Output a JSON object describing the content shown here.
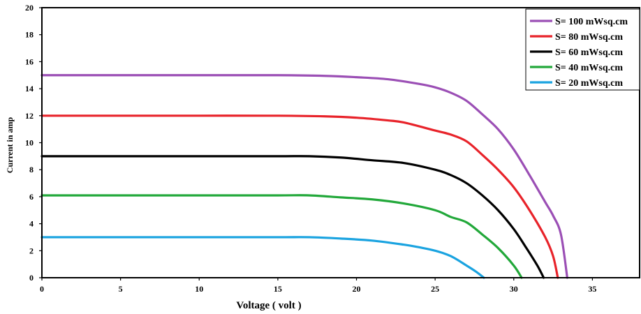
{
  "chart_data": {
    "type": "line",
    "title": "",
    "xlabel": "Voltage ( volt )",
    "ylabel": "Current in amp",
    "xlim": [
      0,
      38
    ],
    "ylim": [
      0,
      20
    ],
    "x_ticks": [
      0,
      5,
      10,
      15,
      20,
      25,
      30,
      35
    ],
    "y_ticks": [
      0,
      2,
      4,
      6,
      8,
      10,
      12,
      14,
      16,
      18,
      20
    ],
    "grid": false,
    "legend_position": "top-right",
    "series": [
      {
        "name": "S= 100 mWsq.cm",
        "color": "#9b4fb5",
        "points": [
          [
            0,
            15
          ],
          [
            5,
            15
          ],
          [
            10,
            15
          ],
          [
            15,
            15
          ],
          [
            18,
            14.95
          ],
          [
            20,
            14.85
          ],
          [
            22,
            14.7
          ],
          [
            24,
            14.35
          ],
          [
            25,
            14.1
          ],
          [
            26,
            13.7
          ],
          [
            27,
            13.1
          ],
          [
            28,
            12.1
          ],
          [
            29,
            11.0
          ],
          [
            30,
            9.5
          ],
          [
            31,
            7.6
          ],
          [
            32,
            5.6
          ],
          [
            32.5,
            4.6
          ],
          [
            33,
            3.2
          ],
          [
            33.4,
            0
          ]
        ]
      },
      {
        "name": "S= 80 mWsq.cm",
        "color": "#e8232a",
        "points": [
          [
            0,
            12
          ],
          [
            5,
            12
          ],
          [
            10,
            12
          ],
          [
            15,
            12
          ],
          [
            18,
            11.95
          ],
          [
            20,
            11.85
          ],
          [
            22,
            11.65
          ],
          [
            23,
            11.5
          ],
          [
            25,
            10.9
          ],
          [
            26,
            10.6
          ],
          [
            27,
            10.1
          ],
          [
            28,
            9.1
          ],
          [
            29,
            8.0
          ],
          [
            30,
            6.7
          ],
          [
            31,
            5.0
          ],
          [
            32,
            3.0
          ],
          [
            32.5,
            1.6
          ],
          [
            32.8,
            0
          ]
        ]
      },
      {
        "name": "S= 60 mWsq.cm",
        "color": "#000000",
        "points": [
          [
            0,
            9
          ],
          [
            5,
            9
          ],
          [
            10,
            9
          ],
          [
            15,
            9
          ],
          [
            17,
            9
          ],
          [
            19,
            8.9
          ],
          [
            21,
            8.7
          ],
          [
            23,
            8.5
          ],
          [
            25,
            8.0
          ],
          [
            26,
            7.6
          ],
          [
            27,
            7.0
          ],
          [
            28,
            6.1
          ],
          [
            29,
            5.0
          ],
          [
            30,
            3.6
          ],
          [
            30.8,
            2.2
          ],
          [
            31.5,
            0.9
          ],
          [
            31.9,
            0
          ]
        ]
      },
      {
        "name": "S= 40 mWsq.cm",
        "color": "#22a83a",
        "points": [
          [
            0,
            6.1
          ],
          [
            5,
            6.1
          ],
          [
            10,
            6.1
          ],
          [
            15,
            6.1
          ],
          [
            17,
            6.1
          ],
          [
            19,
            5.95
          ],
          [
            21,
            5.8
          ],
          [
            23,
            5.5
          ],
          [
            25,
            5.0
          ],
          [
            26,
            4.5
          ],
          [
            27,
            4.1
          ],
          [
            28,
            3.2
          ],
          [
            29,
            2.2
          ],
          [
            30,
            0.9
          ],
          [
            30.5,
            0
          ]
        ]
      },
      {
        "name": "S= 20 mWsq.cm",
        "color": "#1aa3e0",
        "points": [
          [
            0,
            3
          ],
          [
            5,
            3
          ],
          [
            10,
            3
          ],
          [
            15,
            3
          ],
          [
            17,
            3
          ],
          [
            19,
            2.9
          ],
          [
            21,
            2.75
          ],
          [
            23,
            2.45
          ],
          [
            24,
            2.25
          ],
          [
            25,
            2.0
          ],
          [
            26,
            1.6
          ],
          [
            27,
            0.9
          ],
          [
            27.6,
            0.45
          ],
          [
            28.1,
            0
          ]
        ]
      }
    ]
  }
}
